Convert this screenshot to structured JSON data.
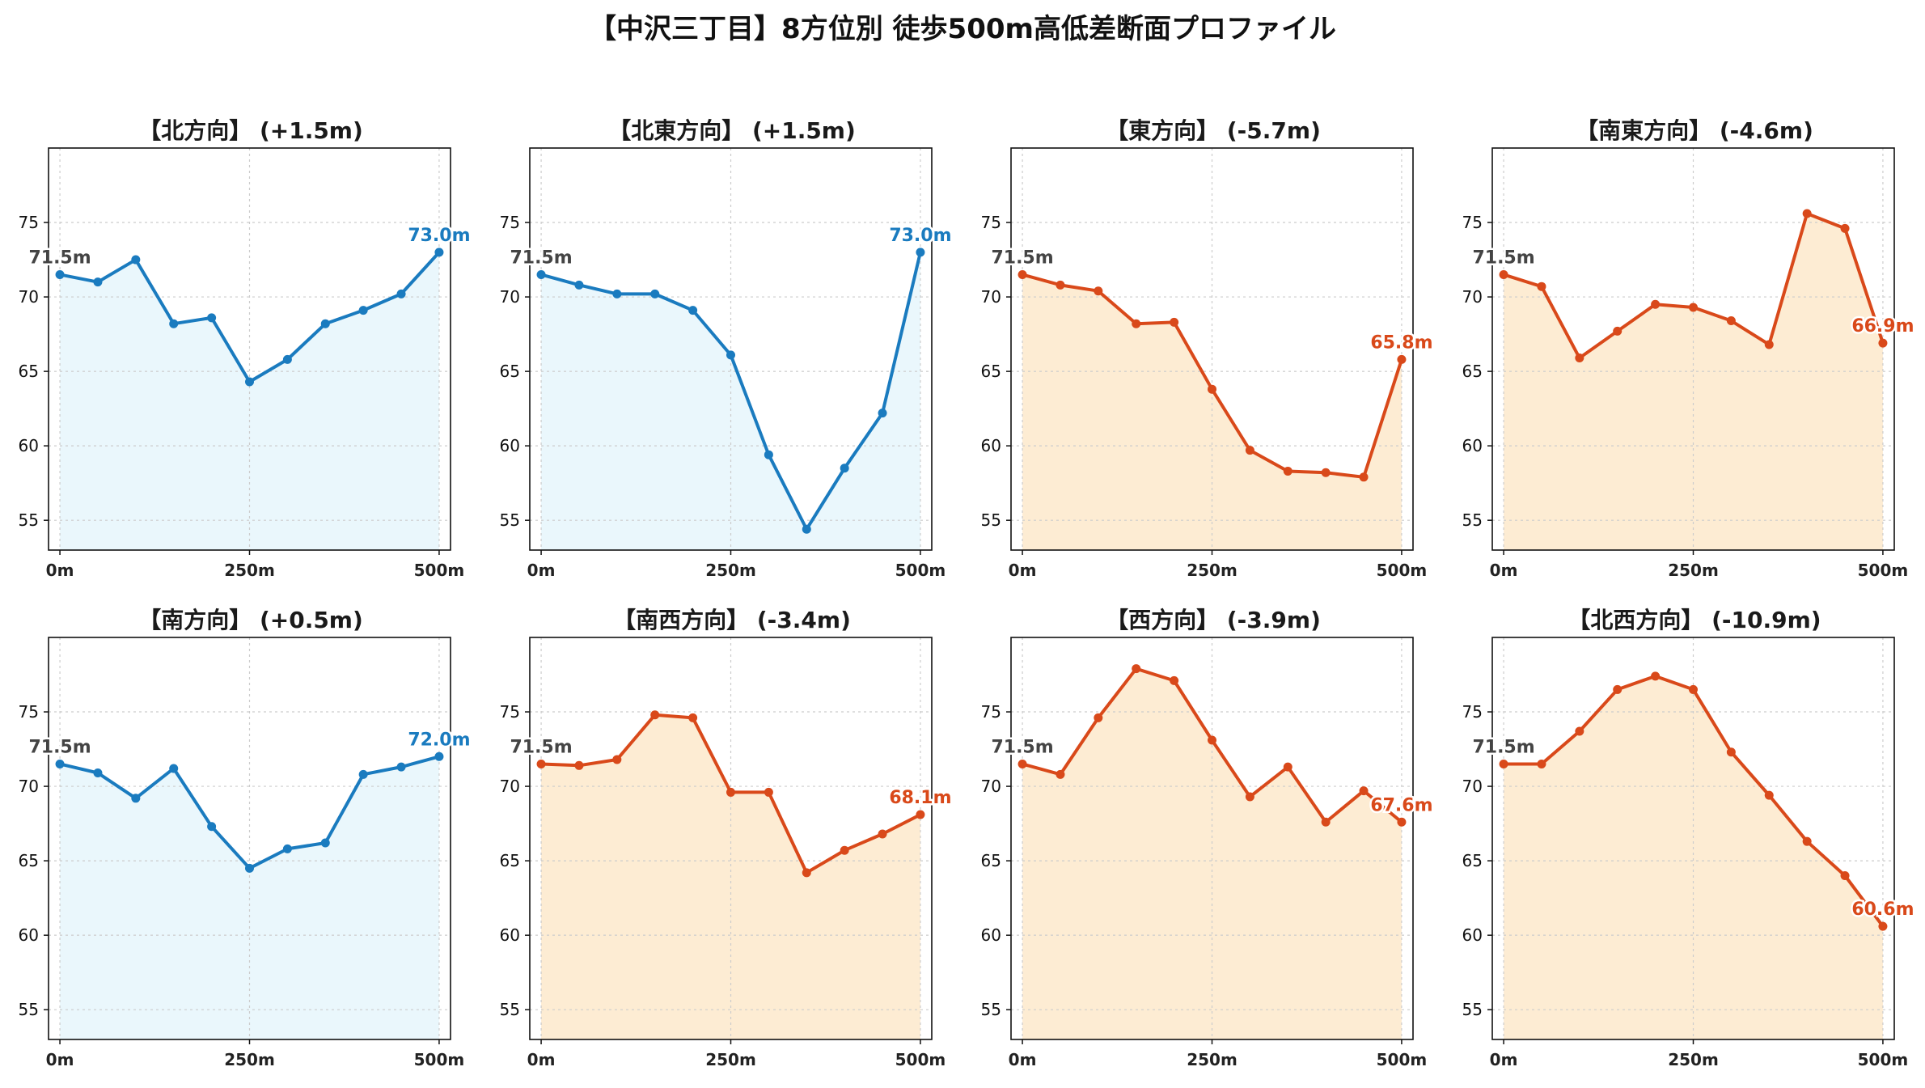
{
  "figure": {
    "title": "【中沢三丁目】8方位別 徒歩500m高低差断面プロファイル"
  },
  "colors": {
    "up_line": "#1a7bbf",
    "up_fill": "#eaf7fc",
    "down_line": "#d9491a",
    "down_fill": "#fdecd3",
    "start_label": "#444444",
    "grid": "#cccccc"
  },
  "chart_data": [
    {
      "type": "area",
      "title": "【北方向】 (+1.5m)",
      "trend": "up",
      "x": [
        0,
        50,
        100,
        150,
        200,
        250,
        300,
        350,
        400,
        450,
        500
      ],
      "y": [
        71.5,
        71.0,
        72.5,
        68.2,
        68.6,
        64.3,
        65.8,
        68.2,
        69.1,
        70.2,
        73.0
      ],
      "xticks": [
        "0m",
        "250m",
        "500m"
      ],
      "xtick_values": [
        0,
        250,
        500
      ],
      "yticks": [
        55,
        60,
        65,
        70,
        75
      ],
      "xlim": [
        -15,
        515
      ],
      "ylim": [
        53,
        80
      ],
      "start_label": "71.5m",
      "end_label": "73.0m",
      "grid": true
    },
    {
      "type": "area",
      "title": "【北東方向】 (+1.5m)",
      "trend": "up",
      "x": [
        0,
        50,
        100,
        150,
        200,
        250,
        300,
        350,
        400,
        450,
        500
      ],
      "y": [
        71.5,
        70.8,
        70.2,
        70.2,
        69.1,
        66.1,
        59.4,
        54.4,
        58.5,
        62.2,
        73.0
      ],
      "xticks": [
        "0m",
        "250m",
        "500m"
      ],
      "xtick_values": [
        0,
        250,
        500
      ],
      "yticks": [
        55,
        60,
        65,
        70,
        75
      ],
      "xlim": [
        -15,
        515
      ],
      "ylim": [
        53,
        80
      ],
      "start_label": "71.5m",
      "end_label": "73.0m",
      "grid": true
    },
    {
      "type": "area",
      "title": "【東方向】 (-5.7m)",
      "trend": "down",
      "x": [
        0,
        50,
        100,
        150,
        200,
        250,
        300,
        350,
        400,
        450,
        500
      ],
      "y": [
        71.5,
        70.8,
        70.4,
        68.2,
        68.3,
        63.8,
        59.7,
        58.3,
        58.2,
        57.9,
        65.8
      ],
      "xticks": [
        "0m",
        "250m",
        "500m"
      ],
      "xtick_values": [
        0,
        250,
        500
      ],
      "yticks": [
        55,
        60,
        65,
        70,
        75
      ],
      "xlim": [
        -15,
        515
      ],
      "ylim": [
        53,
        80
      ],
      "start_label": "71.5m",
      "end_label": "65.8m",
      "grid": true
    },
    {
      "type": "area",
      "title": "【南東方向】 (-4.6m)",
      "trend": "down",
      "x": [
        0,
        50,
        100,
        150,
        200,
        250,
        300,
        350,
        400,
        450,
        500
      ],
      "y": [
        71.5,
        70.7,
        65.9,
        67.7,
        69.5,
        69.3,
        68.4,
        66.8,
        75.6,
        74.6,
        66.9
      ],
      "xticks": [
        "0m",
        "250m",
        "500m"
      ],
      "xtick_values": [
        0,
        250,
        500
      ],
      "yticks": [
        55,
        60,
        65,
        70,
        75
      ],
      "xlim": [
        -15,
        515
      ],
      "ylim": [
        53,
        80
      ],
      "start_label": "71.5m",
      "end_label": "66.9m",
      "grid": true
    },
    {
      "type": "area",
      "title": "【南方向】 (+0.5m)",
      "trend": "up",
      "x": [
        0,
        50,
        100,
        150,
        200,
        250,
        300,
        350,
        400,
        450,
        500
      ],
      "y": [
        71.5,
        70.9,
        69.2,
        71.2,
        67.3,
        64.5,
        65.8,
        66.2,
        70.8,
        71.3,
        72.0
      ],
      "xticks": [
        "0m",
        "250m",
        "500m"
      ],
      "xtick_values": [
        0,
        250,
        500
      ],
      "yticks": [
        55,
        60,
        65,
        70,
        75
      ],
      "xlim": [
        -15,
        515
      ],
      "ylim": [
        53,
        80
      ],
      "start_label": "71.5m",
      "end_label": "72.0m",
      "grid": true
    },
    {
      "type": "area",
      "title": "【南西方向】 (-3.4m)",
      "trend": "down",
      "x": [
        0,
        50,
        100,
        150,
        200,
        250,
        300,
        350,
        400,
        450,
        500
      ],
      "y": [
        71.5,
        71.4,
        71.8,
        74.8,
        74.6,
        69.6,
        69.6,
        64.2,
        65.7,
        66.8,
        68.1
      ],
      "xticks": [
        "0m",
        "250m",
        "500m"
      ],
      "xtick_values": [
        0,
        250,
        500
      ],
      "yticks": [
        55,
        60,
        65,
        70,
        75
      ],
      "xlim": [
        -15,
        515
      ],
      "ylim": [
        53,
        80
      ],
      "start_label": "71.5m",
      "end_label": "68.1m",
      "grid": true
    },
    {
      "type": "area",
      "title": "【西方向】 (-3.9m)",
      "trend": "down",
      "x": [
        0,
        50,
        100,
        150,
        200,
        250,
        300,
        350,
        400,
        450,
        500
      ],
      "y": [
        71.5,
        70.8,
        74.6,
        77.9,
        77.1,
        73.1,
        69.3,
        71.3,
        67.6,
        69.7,
        67.6
      ],
      "xticks": [
        "0m",
        "250m",
        "500m"
      ],
      "xtick_values": [
        0,
        250,
        500
      ],
      "yticks": [
        55,
        60,
        65,
        70,
        75
      ],
      "xlim": [
        -15,
        515
      ],
      "ylim": [
        53,
        80
      ],
      "start_label": "71.5m",
      "end_label": "67.6m",
      "grid": true
    },
    {
      "type": "area",
      "title": "【北西方向】 (-10.9m)",
      "trend": "down",
      "x": [
        0,
        50,
        100,
        150,
        200,
        250,
        300,
        350,
        400,
        450,
        500
      ],
      "y": [
        71.5,
        71.5,
        73.7,
        76.5,
        77.4,
        76.5,
        72.3,
        69.4,
        66.3,
        64.0,
        60.6
      ],
      "xticks": [
        "0m",
        "250m",
        "500m"
      ],
      "xtick_values": [
        0,
        250,
        500
      ],
      "yticks": [
        55,
        60,
        65,
        70,
        75
      ],
      "xlim": [
        -15,
        515
      ],
      "ylim": [
        53,
        80
      ],
      "start_label": "71.5m",
      "end_label": "60.6m",
      "grid": true
    }
  ]
}
